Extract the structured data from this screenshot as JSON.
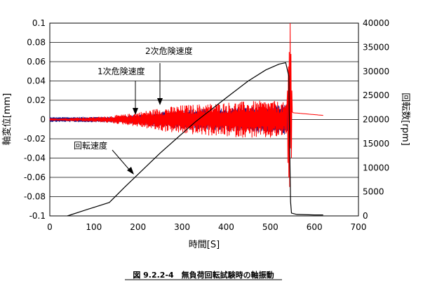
{
  "chart_data": {
    "type": "line",
    "title": "",
    "caption": "図 9.2.2-4　無負荷回転試験時の軸振動",
    "xlabel": "時間[S]",
    "ylabel_left": "軸変位[mm]",
    "ylabel_right": "回転数[rpm]",
    "xlim": [
      0,
      700
    ],
    "ylim_left": [
      -0.1,
      0.1
    ],
    "ylim_right": [
      0,
      40000
    ],
    "x_ticks": [
      "0",
      "100",
      "200",
      "300",
      "400",
      "500",
      "600",
      "700"
    ],
    "y_left_ticks": [
      "-0.1",
      "-0.08",
      "-0.06",
      "-0.04",
      "-0.02",
      "0",
      "0.02",
      "0.04",
      "0.06",
      "0.08",
      "0.1"
    ],
    "y_right_ticks": [
      "0",
      "5000",
      "10000",
      "15000",
      "20000",
      "25000",
      "30000",
      "35000",
      "40000"
    ],
    "grid": true,
    "series": [
      {
        "key": "rpm",
        "axis": "right",
        "color": "#000000",
        "x": [
          40,
          80,
          135,
          170,
          250,
          330,
          400,
          450,
          490,
          520,
          535,
          542,
          544,
          546,
          548,
          560,
          600,
          620
        ],
        "y": [
          0,
          1200,
          2800,
          6000,
          13000,
          19500,
          24500,
          28000,
          30300,
          31500,
          31800,
          29000,
          15000,
          3000,
          600,
          300,
          200,
          200
        ]
      },
      {
        "key": "displacement_blue",
        "axis": "left",
        "color": "#1a1a8c",
        "x_range": [
          0,
          545
        ],
        "envelope": [
          [
            0,
            0.0025
          ],
          [
            150,
            0.003
          ],
          [
            200,
            0.005
          ],
          [
            250,
            0.008
          ],
          [
            300,
            0.01
          ],
          [
            400,
            0.012
          ],
          [
            500,
            0.014
          ],
          [
            535,
            0.016
          ],
          [
            545,
            0.02
          ]
        ]
      },
      {
        "key": "displacement_red",
        "axis": "left",
        "color": "#ff0000",
        "x_range": [
          0,
          620
        ],
        "envelope": [
          [
            0,
            0.001
          ],
          [
            120,
            0.003
          ],
          [
            180,
            0.006
          ],
          [
            250,
            0.012
          ],
          [
            300,
            0.015
          ],
          [
            400,
            0.018
          ],
          [
            500,
            0.02
          ],
          [
            530,
            0.018
          ],
          [
            540,
            0.014
          ]
        ],
        "resonance_peak": {
          "x": 545,
          "max": 0.1,
          "min": -0.07
        },
        "tail_level": 0.007
      }
    ],
    "annotations": [
      {
        "key": "critical2",
        "text": "2次危険速度",
        "target_x": 250,
        "target_y": 0.035
      },
      {
        "key": "critical1",
        "text": "1次危険速度",
        "target_x": 196,
        "target_y": 0.007
      },
      {
        "key": "rpm_label",
        "text": "回転速度"
      }
    ]
  }
}
